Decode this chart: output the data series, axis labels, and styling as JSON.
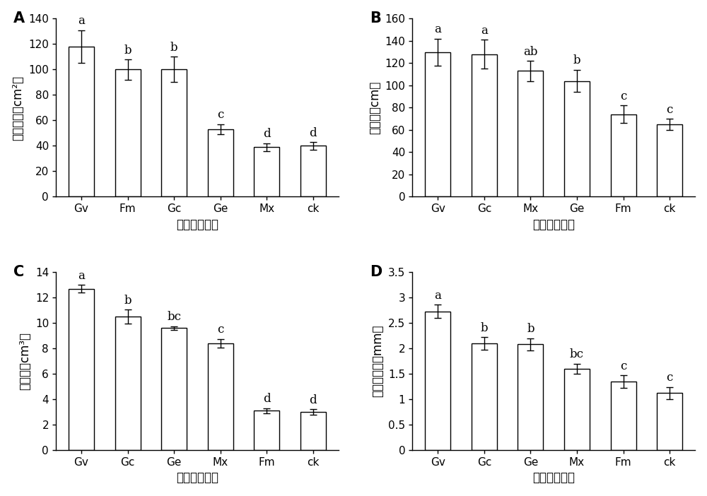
{
  "panels": [
    {
      "label": "A",
      "ylabel": "根表面积（cm²）",
      "xlabel": "接种不同菌剂",
      "categories": [
        "Gv",
        "Fm",
        "Gc",
        "Ge",
        "Mx",
        "ck"
      ],
      "values": [
        118,
        100,
        100,
        53,
        39,
        40
      ],
      "errors": [
        13,
        8,
        10,
        4,
        3,
        3
      ],
      "sig_labels": [
        "a",
        "b",
        "b",
        "c",
        "d",
        "d"
      ],
      "ylim": [
        0,
        140
      ],
      "yticks": [
        0,
        20,
        40,
        60,
        80,
        100,
        120,
        140
      ]
    },
    {
      "label": "B",
      "ylabel": "总根长（cm）",
      "xlabel": "接种不同菌剂",
      "categories": [
        "Gv",
        "Gc",
        "Mx",
        "Ge",
        "Fm",
        "ck"
      ],
      "values": [
        130,
        128,
        113,
        104,
        74,
        65
      ],
      "errors": [
        12,
        13,
        9,
        10,
        8,
        5
      ],
      "sig_labels": [
        "a",
        "a",
        "ab",
        "b",
        "c",
        "c"
      ],
      "ylim": [
        0,
        160
      ],
      "yticks": [
        0,
        20,
        40,
        60,
        80,
        100,
        120,
        140,
        160
      ]
    },
    {
      "label": "C",
      "ylabel": "根体积（cm³）",
      "xlabel": "接种不同菌剂",
      "categories": [
        "Gv",
        "Gc",
        "Ge",
        "Mx",
        "Fm",
        "ck"
      ],
      "values": [
        12.7,
        10.5,
        9.6,
        8.4,
        3.1,
        3.0
      ],
      "errors": [
        0.3,
        0.55,
        0.15,
        0.35,
        0.2,
        0.2
      ],
      "sig_labels": [
        "a",
        "b",
        "bc",
        "c",
        "d",
        "d"
      ],
      "ylim": [
        0,
        14
      ],
      "yticks": [
        0,
        2,
        4,
        6,
        8,
        10,
        12,
        14
      ]
    },
    {
      "label": "D",
      "ylabel": "根平均直径（mm）",
      "xlabel": "接种不同菌剂",
      "categories": [
        "Gv",
        "Gc",
        "Ge",
        "Mx",
        "Fm",
        "ck"
      ],
      "values": [
        2.73,
        2.1,
        2.08,
        1.6,
        1.35,
        1.12
      ],
      "errors": [
        0.13,
        0.12,
        0.12,
        0.1,
        0.12,
        0.12
      ],
      "sig_labels": [
        "a",
        "b",
        "b",
        "bc",
        "c",
        "c"
      ],
      "ylim": [
        0,
        3.5
      ],
      "yticks": [
        0,
        0.5,
        1.0,
        1.5,
        2.0,
        2.5,
        3.0,
        3.5
      ]
    }
  ],
  "bar_color": "white",
  "bar_edgecolor": "black",
  "bar_width": 0.55,
  "sig_fontsize": 12,
  "label_fontsize": 12,
  "tick_fontsize": 11,
  "panel_label_fontsize": 15,
  "xlabel_fontsize": 12
}
